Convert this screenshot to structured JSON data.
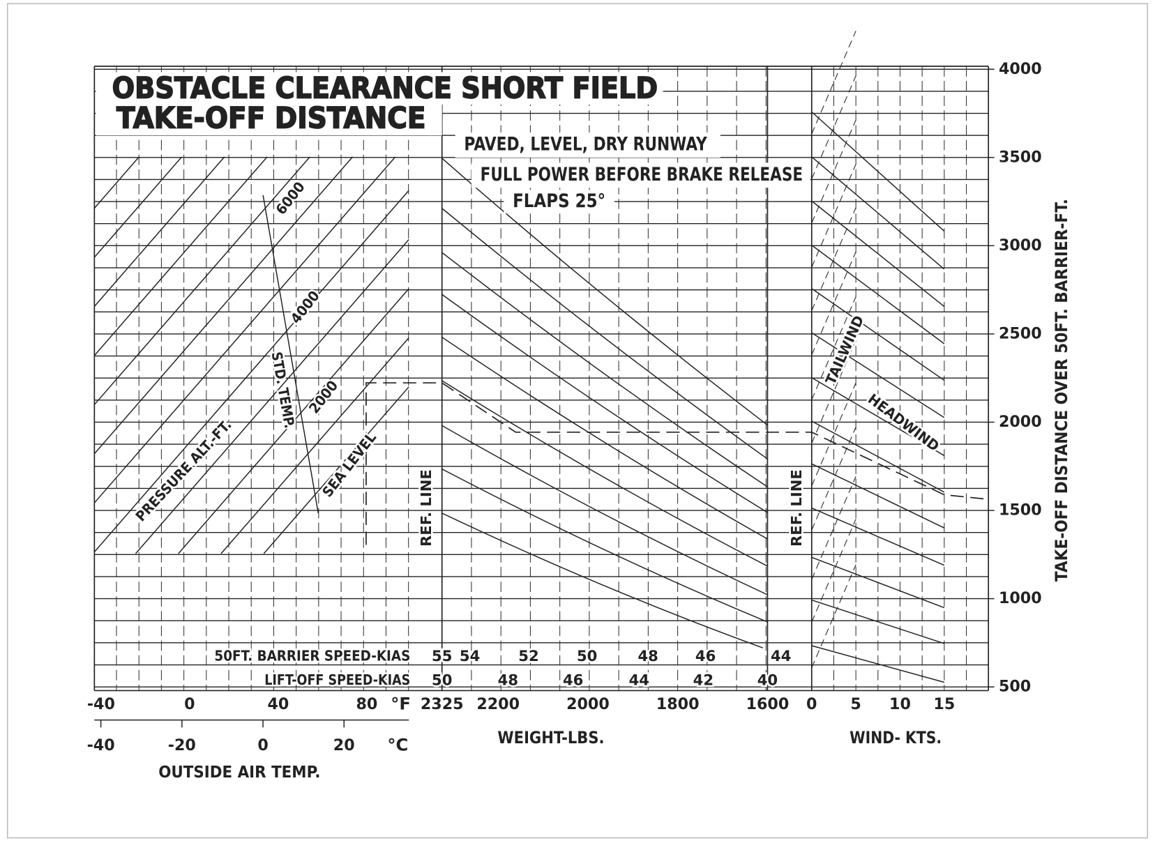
{
  "chart_data": {
    "type": "nomograph",
    "title": "OBSTACLE CLEARANCE SHORT FIELD",
    "title2": "TAKE-OFF DISTANCE",
    "subtitles": [
      "PAVED, LEVEL, DRY RUNWAY",
      "FULL POWER BEFORE BRAKE RELEASE",
      "FLAPS 25°"
    ],
    "y_label": "TAKE-OFF DISTANCE OVER 50FT. BARRIER-FT.",
    "ylim": [
      500,
      4000
    ],
    "yticks": [
      500,
      1000,
      1500,
      2000,
      2500,
      3000,
      3500,
      4000
    ],
    "yminor": [
      500,
      625,
      750,
      875,
      1000,
      1125,
      1250,
      1375,
      1500,
      1625,
      1750,
      1875,
      2000,
      2125,
      2250,
      2375,
      2500,
      2625,
      2750,
      2875,
      3000,
      3125,
      3250,
      3375,
      3500,
      3625,
      3750,
      3875,
      4000
    ],
    "temperature": {
      "label": "OUTSIDE AIR TEMP.",
      "f_unit": "°F",
      "c_unit": "°C",
      "f_lim": [
        -43,
        99
      ],
      "f_ticks": [
        -40,
        0,
        40,
        80
      ],
      "c_lim": [
        -41.6,
        36
      ],
      "c_ticks": [
        -40,
        -20,
        0,
        20
      ]
    },
    "weight": {
      "label": "WEIGHT-LBS.",
      "xlim": [
        2325,
        1600
      ],
      "xticks": [
        2325,
        2200,
        2000,
        1800,
        1600
      ]
    },
    "wind": {
      "label": "WIND- KTS.",
      "xlim": [
        0,
        15
      ],
      "xticks": [
        0,
        5,
        10,
        15
      ]
    },
    "barrier_speed": {
      "label": "50FT. BARRIER SPEED-KIAS",
      "values": [
        55,
        54,
        52,
        50,
        48,
        46,
        44
      ],
      "weights": [
        2325,
        2263,
        2132,
        2002,
        1866,
        1738,
        1570
      ]
    },
    "liftoff_speed": {
      "label": "LIFT-OFF SPEED-KIAS",
      "values": [
        50,
        48,
        46,
        44,
        42,
        40
      ],
      "weights": [
        2325,
        2178,
        2033,
        1886,
        1743,
        1600
      ]
    },
    "annotations": [
      "PRESSURE ALT.-FT.",
      "SEA LEVEL",
      "2000",
      "4000",
      "6000",
      "STD. TEMP.",
      "REF. LINE",
      "REF. LINE",
      "TAILWIND",
      "HEADWIND"
    ]
  }
}
